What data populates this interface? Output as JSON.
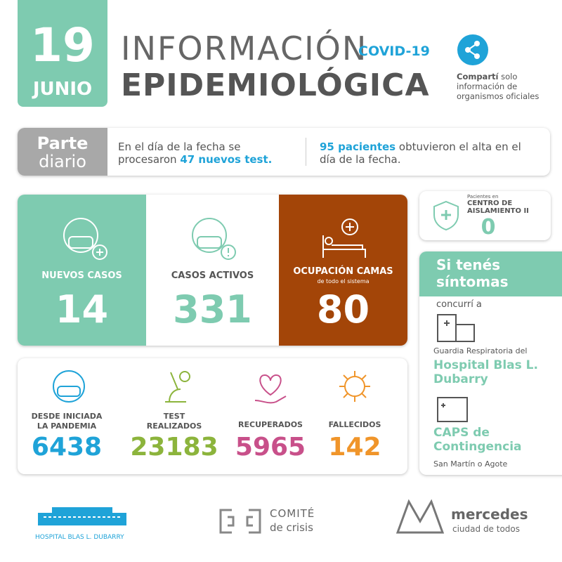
{
  "header": {
    "day": "19",
    "month": "JUNIO",
    "title_line1": "INFORMACIÓN",
    "tag": "COVID-19",
    "title_line2": "EPIDEMIOLÓGICA",
    "share_bold": "Compartí",
    "share_text": "solo información de organismos oficiales"
  },
  "parte": {
    "label1": "Parte",
    "label2": "diario",
    "left_pre": "En el día de la fecha se procesaron",
    "left_highlight": "47 nuevos test.",
    "right_highlight": "95 pacientes",
    "right_post": "obtuvieron el alta en el día de la fecha."
  },
  "stats": [
    {
      "label": "NUEVOS CASOS",
      "value": 14
    },
    {
      "label": "CASOS ACTIVOS",
      "value": 331
    },
    {
      "label": "OCUPACIÓN CAMAS",
      "sublabel": "de todo el sistema",
      "value": 80
    }
  ],
  "isolation": {
    "small": "Pacientes en",
    "label": "CENTRO DE AISLAMIENTO II",
    "value": 0
  },
  "totals": [
    {
      "label": "DESDE INICIADA LA PANDEMIA",
      "value": 6438
    },
    {
      "label": "TEST REALIZADOS",
      "value": 23183
    },
    {
      "label": "RECUPERADOS",
      "value": 5965
    },
    {
      "label": "FALLECIDOS",
      "value": 142
    }
  ],
  "symptoms": {
    "title": "Si tenés síntomas",
    "sub": "concurrí a",
    "place1_pre": "Guardia Respiratoria del",
    "place1": "Hospital Blas L. Dubarry",
    "place2": "CAPS de Contingencia",
    "place2_sub": "San Martín o Agote"
  },
  "footer": {
    "hospital": "HOSPITAL BLAS L. DUBARRY",
    "comite1": "COMITÉ",
    "comite2": "de crisis",
    "city": "mercedes",
    "city_sub": "ciudad de todos"
  }
}
